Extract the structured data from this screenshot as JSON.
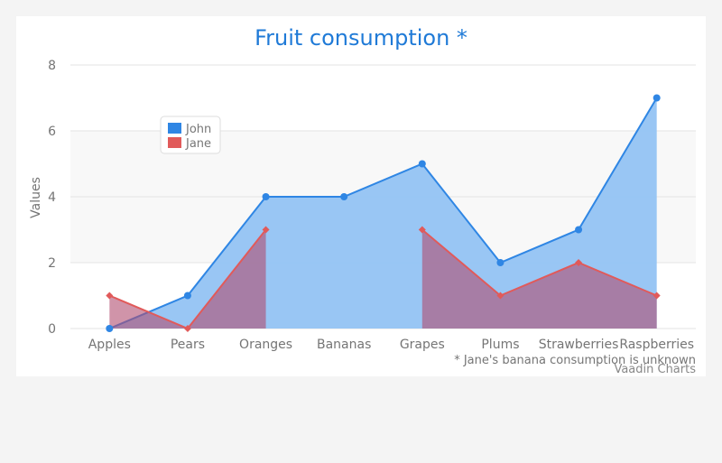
{
  "chart_data": {
    "type": "area",
    "title": "Fruit consumption *",
    "ylabel": "Values",
    "ylim": [
      0,
      8
    ],
    "yticks": [
      0,
      2,
      4,
      6,
      8
    ],
    "categories": [
      "Apples",
      "Pears",
      "Oranges",
      "Bananas",
      "Grapes",
      "Plums",
      "Strawberries",
      "Raspberries"
    ],
    "series": [
      {
        "name": "John",
        "color": "#2f86e4",
        "fill": "#94c3f3",
        "marker": "circle",
        "values": [
          0,
          1,
          4,
          4,
          5,
          2,
          3,
          7
        ]
      },
      {
        "name": "Jane",
        "color": "#e15a5a",
        "fill": "#b04c6f",
        "marker": "diamond",
        "values": [
          1,
          0,
          3,
          null,
          3,
          1,
          2,
          1
        ]
      }
    ],
    "legend": "top-left",
    "grid": true,
    "annotation": "* Jane's banana consumption is unknown",
    "credits": "Vaadin Charts"
  }
}
